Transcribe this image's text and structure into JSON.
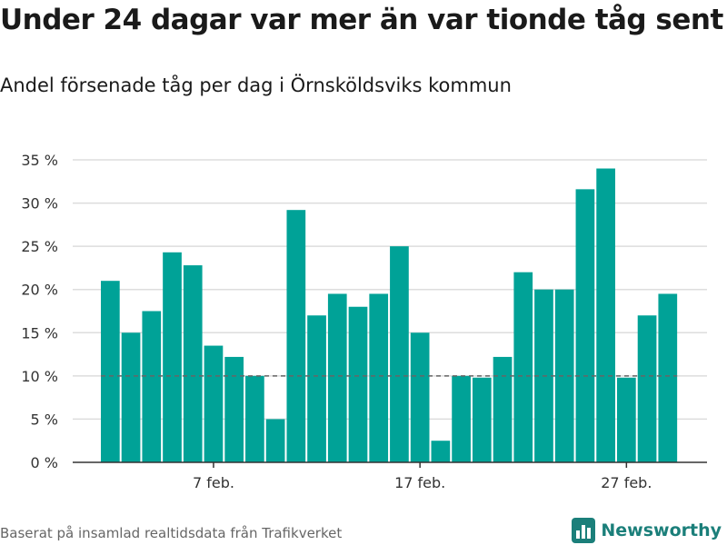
{
  "title": "Under 24 dagar var mer än var tionde tåg sent",
  "subtitle": "Andel försenade tåg per dag i Örnsköldsviks kommun",
  "source": "Baserat på insamlad realtidsdata från Trafikverket",
  "brand": {
    "name": "Newsworthy",
    "logo_icon": "bar-chart-logo-icon"
  },
  "colors": {
    "bar": "#00a297",
    "grid": "#dddddd",
    "axis": "#333333",
    "reference_line": "#666666",
    "brand": "#1b7f7a"
  },
  "chart_data": {
    "type": "bar",
    "x_ticks": [
      {
        "index": 5,
        "label": "7 feb."
      },
      {
        "index": 15,
        "label": "17 feb."
      },
      {
        "index": 25,
        "label": "27 feb."
      }
    ],
    "y_ticks": [
      {
        "value": 0,
        "label": "0 %"
      },
      {
        "value": 5,
        "label": "5 %"
      },
      {
        "value": 10,
        "label": "10 %"
      },
      {
        "value": 15,
        "label": "15 %"
      },
      {
        "value": 20,
        "label": "20 %"
      },
      {
        "value": 25,
        "label": "25 %"
      },
      {
        "value": 30,
        "label": "30 %"
      },
      {
        "value": 35,
        "label": "35 %"
      }
    ],
    "ylim": [
      0,
      35
    ],
    "reference_line": 10,
    "values": [
      21,
      15,
      17.5,
      24.3,
      22.8,
      13.5,
      12.2,
      10,
      5,
      29.2,
      17,
      19.5,
      18,
      19.5,
      25,
      15,
      2.5,
      10,
      9.8,
      12.2,
      22,
      20,
      20,
      31.6,
      34,
      9.8,
      17,
      19.5
    ]
  }
}
